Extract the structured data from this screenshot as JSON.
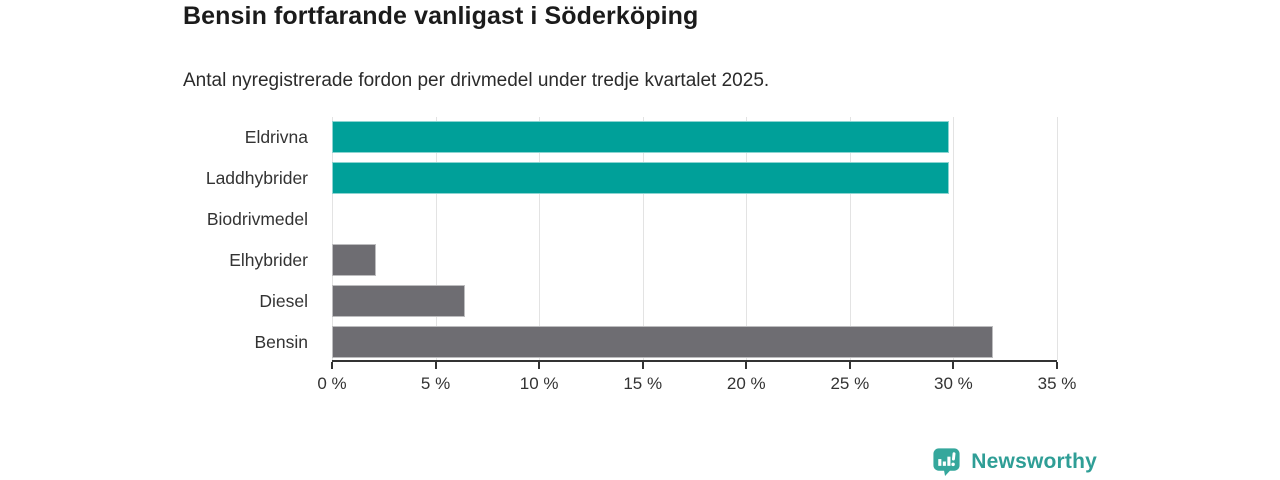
{
  "header": {
    "title": "Bensin fortfarande vanligast i Söderköping",
    "subtitle": "Antal nyregistrerade fordon per drivmedel under tredje kvartalet 2025."
  },
  "chart_data": {
    "type": "bar",
    "orientation": "horizontal",
    "title": "Bensin fortfarande vanligast i Söderköping",
    "subtitle": "Antal nyregistrerade fordon per drivmedel under tredje kvartalet 2025.",
    "categories": [
      "Eldrivna",
      "Laddhybrider",
      "Biodrivmedel",
      "Elhybrider",
      "Diesel",
      "Bensin"
    ],
    "values": [
      29.8,
      29.8,
      0,
      2.1,
      6.4,
      31.9
    ],
    "unit": "%",
    "xlim": [
      0,
      35
    ],
    "x_ticks": [
      0,
      5,
      10,
      15,
      20,
      25,
      30,
      35
    ],
    "x_tick_labels": [
      "0 %",
      "5 %",
      "10 %",
      "15 %",
      "20 %",
      "25 %",
      "30 %",
      "35 %"
    ],
    "grid": true,
    "legend": "none",
    "colors": {
      "highlight": "#00a099",
      "default": "#6e6d72",
      "bar_colors": [
        "#00a099",
        "#00a099",
        "#6e6d72",
        "#6e6d72",
        "#6e6d72",
        "#6e6d72"
      ],
      "gridline": "#e3e3e3",
      "axis": "#333333",
      "text": "#333333"
    }
  },
  "footer": {
    "brand": "Newsworthy",
    "brand_color": "#2f9e96",
    "badge_color": "#35a79c"
  }
}
